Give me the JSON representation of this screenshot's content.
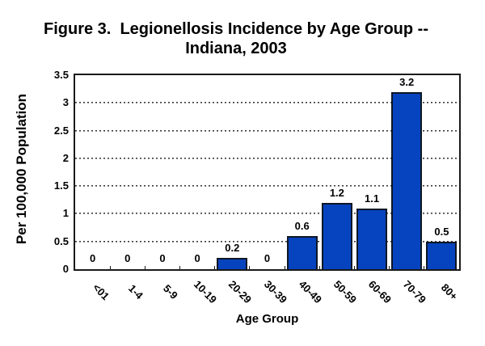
{
  "title": {
    "line1": "Figure 3.  Legionellosis Incidence by Age Group --",
    "line2": "Indiana, 2003"
  },
  "chart_data": {
    "type": "bar",
    "title": "Figure 3. Legionellosis Incidence by Age Group -- Indiana, 2003",
    "categories": [
      "<01",
      "1-4",
      "5-9",
      "10-19",
      "20-29",
      "30-39",
      "40-49",
      "50-59",
      "60-69",
      "70-79",
      "80+"
    ],
    "values": [
      0,
      0,
      0,
      0,
      0.2,
      0,
      0.6,
      1.2,
      1.1,
      3.2,
      0.5
    ],
    "value_labels": [
      "0",
      "0",
      "0",
      "0",
      "0.2",
      "0",
      "0.6",
      "1.2",
      "1.1",
      "3.2",
      "0.5"
    ],
    "xlabel": "Age Group",
    "ylabel": "Per 100,000 Population",
    "ylim": [
      0,
      3.5
    ],
    "ytick_step": 0.5,
    "yticks": [
      "0",
      "0.5",
      "1",
      "1.5",
      "2",
      "2.5",
      "3",
      "3.5"
    ],
    "grid": "horizontal-dotted",
    "legend": "none",
    "bar_color": "#0643be",
    "bar_border_color": "#0d1726",
    "axis_color": "#1a1a1a",
    "grid_color": "#3a3a3a",
    "text_color": "#000000"
  }
}
